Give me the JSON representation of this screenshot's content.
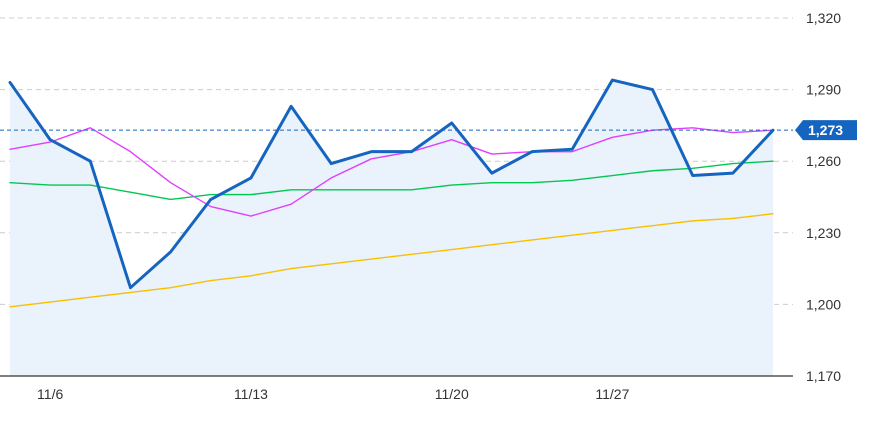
{
  "chart_data": {
    "type": "line",
    "title": "",
    "xlabel": "",
    "ylabel": "",
    "ylim": [
      1170,
      1320
    ],
    "y_ticks": [
      {
        "value": 1320,
        "label": "1,320"
      },
      {
        "value": 1290,
        "label": "1,290"
      },
      {
        "value": 1260,
        "label": "1,260"
      },
      {
        "value": 1230,
        "label": "1,230"
      },
      {
        "value": 1200,
        "label": "1,200"
      },
      {
        "value": 1170,
        "label": "1,170"
      }
    ],
    "x_tick_labels": [
      {
        "index": 1,
        "label": "11/6"
      },
      {
        "index": 6,
        "label": "11/13"
      },
      {
        "index": 11,
        "label": "11/20"
      },
      {
        "index": 15,
        "label": "11/27"
      }
    ],
    "grid": true,
    "y_axis_position": "right",
    "series": [
      {
        "color": "#1565c0",
        "style": "bold-line-with-area",
        "values": [
          1293,
          1269,
          1260,
          1207,
          1222,
          1244,
          1253,
          1283,
          1259,
          1264,
          1264,
          1276,
          1255,
          1264,
          1265,
          1294,
          1290,
          1254,
          1255,
          1273
        ]
      },
      {
        "color": "#e040fb",
        "style": "thin-line",
        "values": [
          1265,
          1268,
          1274,
          1264,
          1251,
          1241,
          1237,
          1242,
          1253,
          1261,
          1264,
          1269,
          1263,
          1264,
          1264,
          1270,
          1273,
          1274,
          1272,
          1273
        ]
      },
      {
        "color": "#00c853",
        "style": "thin-line",
        "values": [
          1251,
          1250,
          1250,
          1247,
          1244,
          1246,
          1246,
          1248,
          1248,
          1248,
          1248,
          1250,
          1251,
          1251,
          1252,
          1254,
          1256,
          1257,
          1259,
          1260
        ]
      },
      {
        "color": "#f9c000",
        "style": "thin-line",
        "values": [
          1199,
          1201,
          1203,
          1205,
          1207,
          1210,
          1212,
          1215,
          1217,
          1219,
          1221,
          1223,
          1225,
          1227,
          1229,
          1231,
          1233,
          1235,
          1236,
          1238
        ]
      }
    ],
    "current_price": {
      "value": 1273,
      "label": "1,273"
    },
    "colors": {
      "area_fill": "#eaf2fb",
      "gridline": "#cccccc",
      "baseline": "#333333",
      "price_line": "#1565c0",
      "price_tag_bg": "#1565c0"
    }
  }
}
